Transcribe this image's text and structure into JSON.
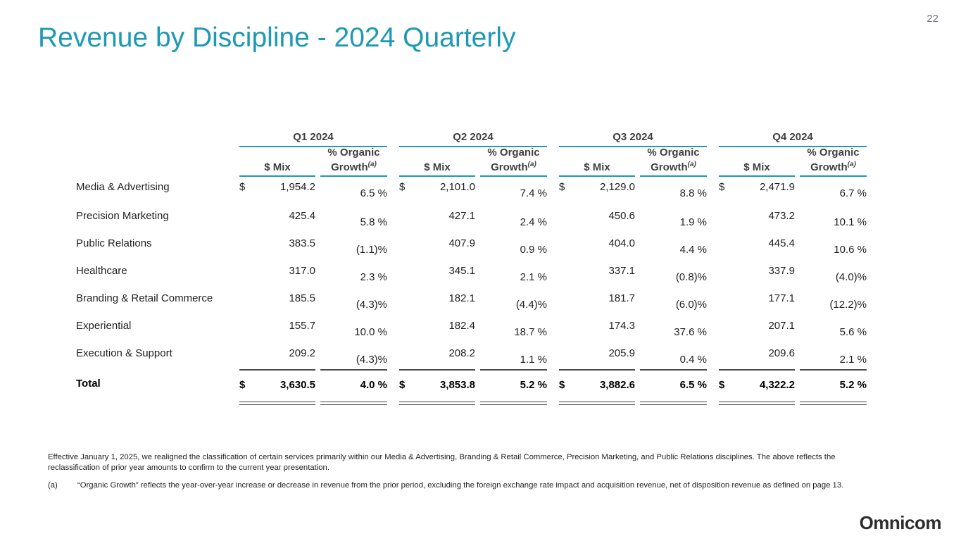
{
  "page_number": "22",
  "title": "Revenue by Discipline - 2024 Quarterly",
  "logo_text": "Omnicom",
  "colors": {
    "accent_teal": "#1e99b4",
    "header_text": "#3f3f3f",
    "body_text": "#1f1f1f",
    "rule_dark": "#4a4a4a"
  },
  "table": {
    "quarters": [
      "Q1 2024",
      "Q2 2024",
      "Q3 2024",
      "Q4 2024"
    ],
    "subheaders": {
      "mix": "$ Mix",
      "growth_line1": "% Organic",
      "growth_line2": "Growth",
      "growth_sup": "(a)"
    },
    "rows": [
      {
        "label": "Media & Advertising",
        "cells": [
          {
            "dollar": "$",
            "mix": "1,954.2",
            "growth": "6.5 %"
          },
          {
            "dollar": "$",
            "mix": "2,101.0",
            "growth": "7.4 %"
          },
          {
            "dollar": "$",
            "mix": "2,129.0",
            "growth": "8.8 %"
          },
          {
            "dollar": "$",
            "mix": "2,471.9",
            "growth": "6.7 %"
          }
        ]
      },
      {
        "label": "Precision Marketing",
        "cells": [
          {
            "mix": "425.4",
            "growth": "5.8 %"
          },
          {
            "mix": "427.1",
            "growth": "2.4 %"
          },
          {
            "mix": "450.6",
            "growth": "1.9 %"
          },
          {
            "mix": "473.2",
            "growth": "10.1 %"
          }
        ]
      },
      {
        "label": "Public Relations",
        "cells": [
          {
            "mix": "383.5",
            "growth": "(1.1)%"
          },
          {
            "mix": "407.9",
            "growth": "0.9 %"
          },
          {
            "mix": "404.0",
            "growth": "4.4 %"
          },
          {
            "mix": "445.4",
            "growth": "10.6 %"
          }
        ]
      },
      {
        "label": "Healthcare",
        "cells": [
          {
            "mix": "317.0",
            "growth": "2.3 %"
          },
          {
            "mix": "345.1",
            "growth": "2.1 %"
          },
          {
            "mix": "337.1",
            "growth": "(0.8)%"
          },
          {
            "mix": "337.9",
            "growth": "(4.0)%"
          }
        ]
      },
      {
        "label": "Branding & Retail Commerce",
        "cells": [
          {
            "mix": "185.5",
            "growth": "(4.3)%"
          },
          {
            "mix": "182.1",
            "growth": "(4.4)%"
          },
          {
            "mix": "181.7",
            "growth": "(6.0)%"
          },
          {
            "mix": "177.1",
            "growth": "(12.2)%"
          }
        ]
      },
      {
        "label": "Experiential",
        "cells": [
          {
            "mix": "155.7",
            "growth": "10.0 %"
          },
          {
            "mix": "182.4",
            "growth": "18.7 %"
          },
          {
            "mix": "174.3",
            "growth": "37.6 %"
          },
          {
            "mix": "207.1",
            "growth": "5.6 %"
          }
        ]
      },
      {
        "label": "Execution & Support",
        "cells": [
          {
            "mix": "209.2",
            "growth": "(4.3)%"
          },
          {
            "mix": "208.2",
            "growth": "1.1 %"
          },
          {
            "mix": "205.9",
            "growth": "0.4 %"
          },
          {
            "mix": "209.6",
            "growth": "2.1 %"
          }
        ]
      }
    ],
    "total": {
      "label": "Total",
      "cells": [
        {
          "dollar": "$",
          "mix": "3,630.5",
          "growth": "4.0 %"
        },
        {
          "dollar": "$",
          "mix": "3,853.8",
          "growth": "5.2 %"
        },
        {
          "dollar": "$",
          "mix": "3,882.6",
          "growth": "6.5 %"
        },
        {
          "dollar": "$",
          "mix": "4,322.2",
          "growth": "5.2 %"
        }
      ]
    }
  },
  "footnotes": {
    "note1": "Effective January 1, 2025, we realigned the classification of certain services primarily within our Media & Advertising, Branding & Retail Commerce, Precision Marketing, and Public Relations disciplines. The above reflects the reclassification of prior year amounts to confirm to the current year presentation.",
    "note2_marker": "(a)",
    "note2": "“Organic Growth” reflects the year-over-year increase or decrease in revenue from the prior period, excluding the foreign exchange rate impact and acquisition revenue, net of disposition revenue as defined on page 13."
  }
}
